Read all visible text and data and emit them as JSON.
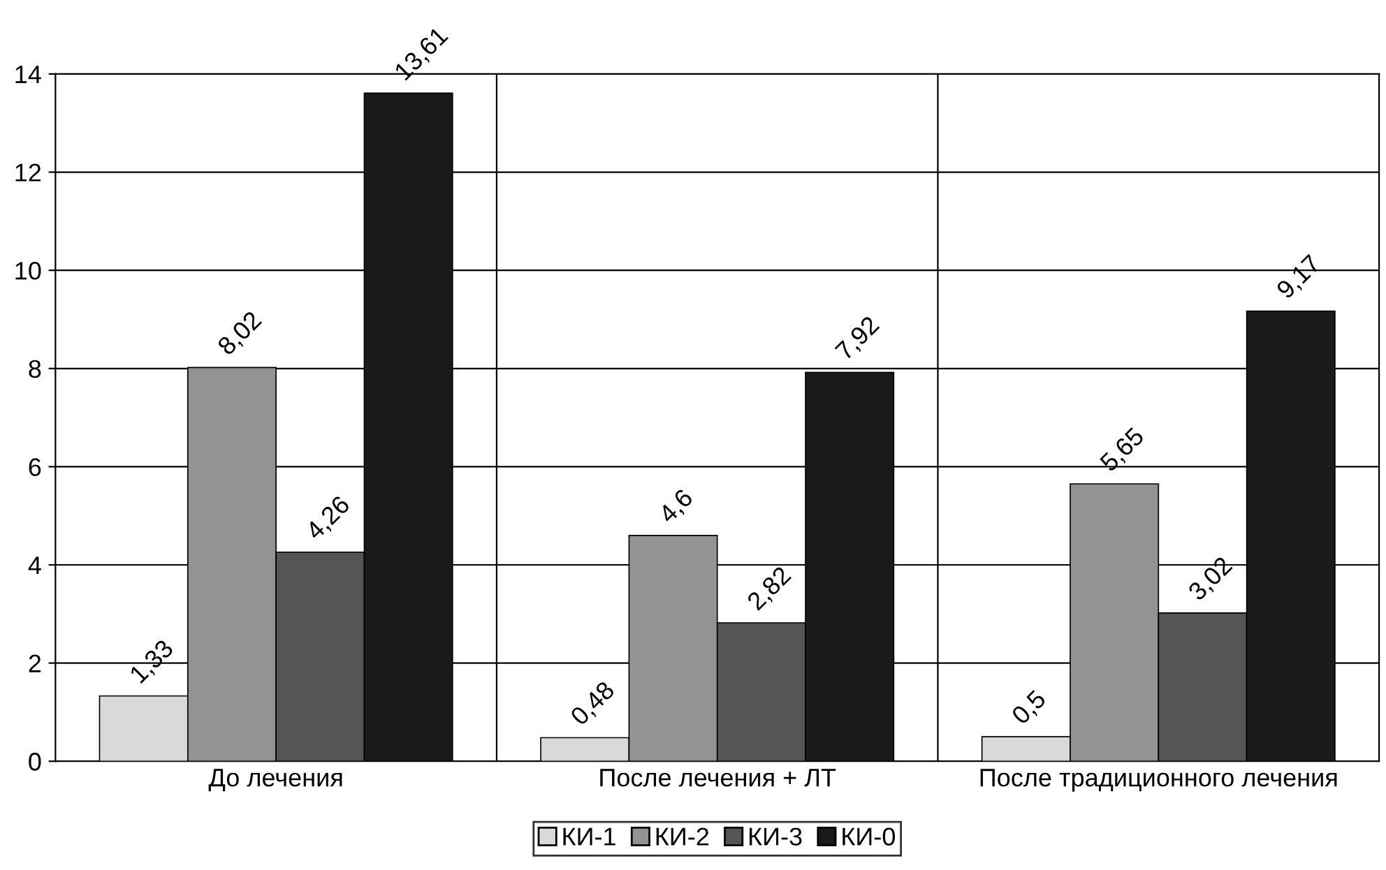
{
  "chart_data": {
    "type": "bar",
    "categories": [
      "До лечения",
      "После лечения + ЛТ",
      "После традиционного лечения"
    ],
    "series": [
      {
        "name": "КИ-1",
        "color": "#d9d9d9",
        "values": [
          1.33,
          0.48,
          0.5
        ],
        "value_labels": [
          "1,33",
          "0,48",
          "0,5"
        ]
      },
      {
        "name": "КИ-2",
        "color": "#939393",
        "values": [
          8.02,
          4.6,
          5.65
        ],
        "value_labels": [
          "8,02",
          "4,6",
          "5,65"
        ]
      },
      {
        "name": "КИ-3",
        "color": "#555555",
        "values": [
          4.26,
          2.82,
          3.02
        ],
        "value_labels": [
          "4,26",
          "2,82",
          "3,02"
        ]
      },
      {
        "name": "КИ-0",
        "color": "#1a1a1a",
        "values": [
          13.61,
          7.92,
          9.17
        ],
        "value_labels": [
          "13,61",
          "7,92",
          "9,17"
        ]
      }
    ],
    "ylim": [
      0,
      14
    ],
    "yticks": [
      0,
      2,
      4,
      6,
      8,
      10,
      12,
      14
    ],
    "grid": true,
    "legend": "bottom"
  }
}
